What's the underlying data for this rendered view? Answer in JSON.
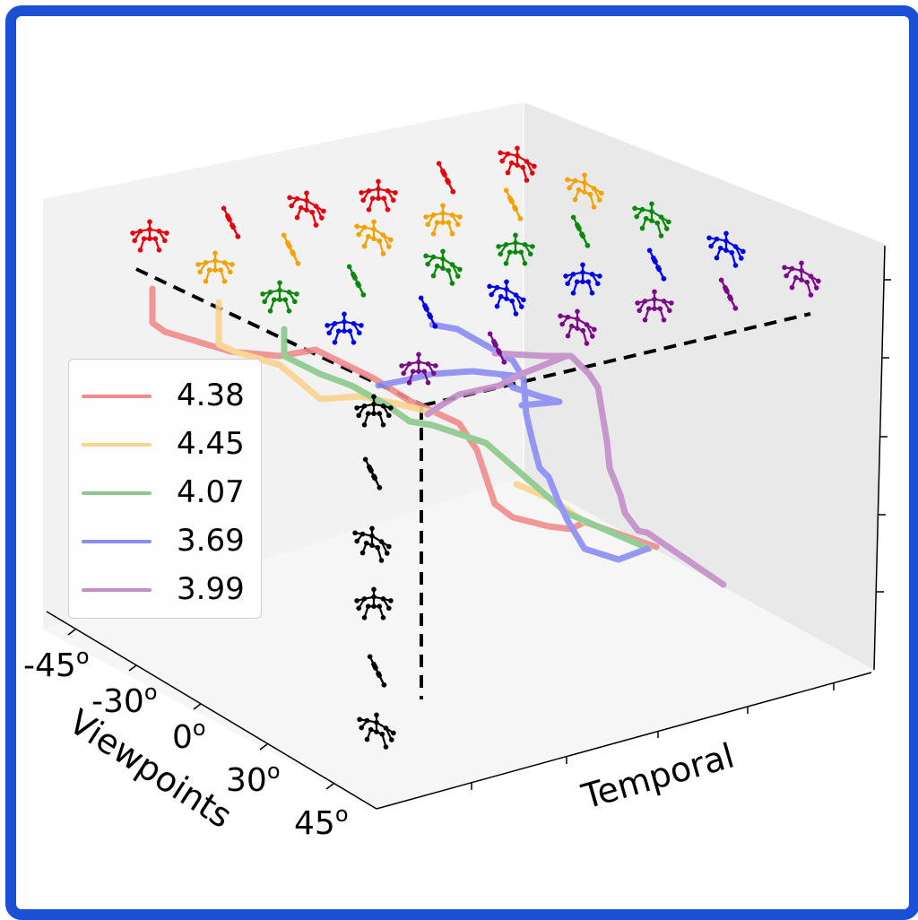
{
  "chart_data": {
    "type": "line",
    "xlabel": "Viewpoints",
    "ylabel": "Temporal",
    "viewpoint_ticks": [
      "-45",
      "-30",
      "0",
      "30",
      "45"
    ],
    "tick_superscript": "o",
    "series": [
      {
        "name": "4.38",
        "color": "#f28b8b"
      },
      {
        "name": "4.45",
        "color": "#fad48e"
      },
      {
        "name": "4.07",
        "color": "#8cc98c"
      },
      {
        "name": "3.69",
        "color": "#8c8cf5"
      },
      {
        "name": "3.99",
        "color": "#c48ec9"
      }
    ],
    "skeleton_colors": [
      "#e8000b",
      "#f5a100",
      "#0a8a0a",
      "#0000ee",
      "#7a0a8a",
      "#000000"
    ],
    "grid": false,
    "legend_position": "center-left"
  }
}
